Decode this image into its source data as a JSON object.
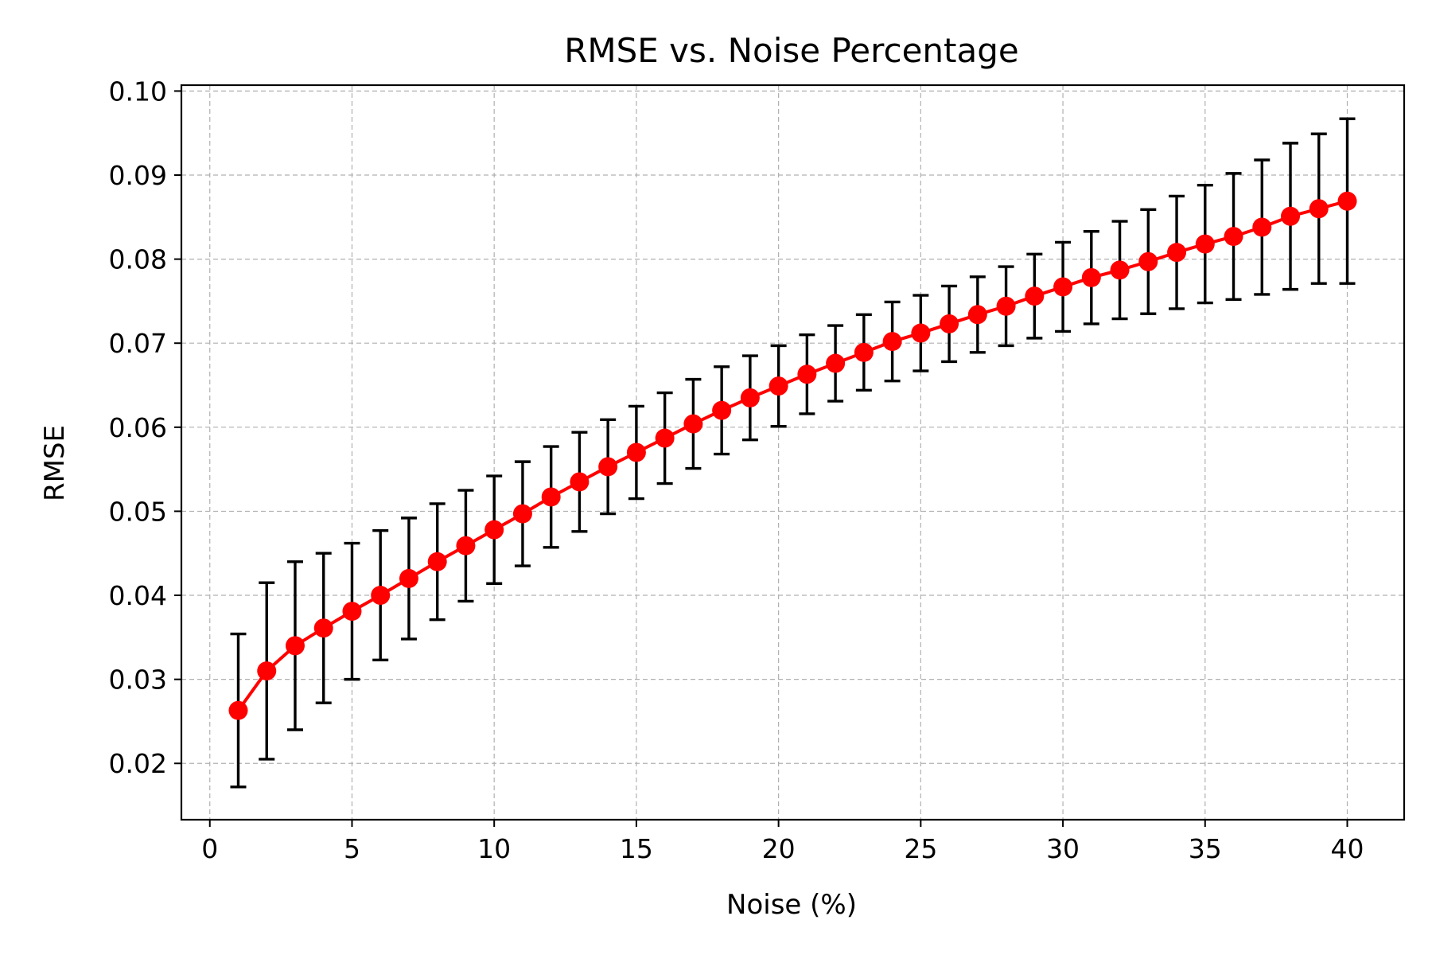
{
  "chart_data": {
    "type": "line",
    "title": "RMSE vs. Noise Percentage",
    "xlabel": "Noise (%)",
    "ylabel": "RMSE",
    "xlim": [
      -1,
      42
    ],
    "ylim": [
      0.0133,
      0.1007
    ],
    "grid": true,
    "x_ticks": [
      0,
      5,
      10,
      15,
      20,
      25,
      30,
      35,
      40
    ],
    "x_tick_labels": [
      "0",
      "5",
      "10",
      "15",
      "20",
      "25",
      "30",
      "35",
      "40"
    ],
    "y_ticks": [
      0.02,
      0.03,
      0.04,
      0.05,
      0.06,
      0.07,
      0.08,
      0.09,
      0.1
    ],
    "y_tick_labels": [
      "0.02",
      "0.03",
      "0.04",
      "0.05",
      "0.06",
      "0.07",
      "0.08",
      "0.09",
      "0.10"
    ],
    "series": [
      {
        "name": "RMSE",
        "color": "#ff0000",
        "marker": "circle",
        "x": [
          1,
          2,
          3,
          4,
          5,
          6,
          7,
          8,
          9,
          10,
          11,
          12,
          13,
          14,
          15,
          16,
          17,
          18,
          19,
          20,
          21,
          22,
          23,
          24,
          25,
          26,
          27,
          28,
          29,
          30,
          31,
          32,
          33,
          34,
          35,
          36,
          37,
          38,
          39,
          40
        ],
        "y": [
          0.0263,
          0.031,
          0.034,
          0.0361,
          0.0381,
          0.04,
          0.042,
          0.044,
          0.0459,
          0.0478,
          0.0497,
          0.0517,
          0.0535,
          0.0553,
          0.057,
          0.0587,
          0.0604,
          0.062,
          0.0635,
          0.0649,
          0.0663,
          0.0676,
          0.0689,
          0.0702,
          0.0712,
          0.0723,
          0.0734,
          0.0744,
          0.0756,
          0.0767,
          0.0778,
          0.0787,
          0.0797,
          0.0808,
          0.0818,
          0.0827,
          0.0838,
          0.0851,
          0.086,
          0.0869
        ],
        "yerr": [
          0.0091,
          0.0105,
          0.01,
          0.0089,
          0.0081,
          0.0077,
          0.0072,
          0.0069,
          0.0066,
          0.0064,
          0.0062,
          0.006,
          0.0059,
          0.0056,
          0.0055,
          0.0054,
          0.0053,
          0.0052,
          0.005,
          0.0048,
          0.0047,
          0.0045,
          0.0045,
          0.0047,
          0.0045,
          0.0045,
          0.0045,
          0.0047,
          0.005,
          0.0053,
          0.0055,
          0.0058,
          0.0062,
          0.0067,
          0.007,
          0.0075,
          0.008,
          0.0087,
          0.0089,
          0.0098
        ]
      }
    ]
  }
}
